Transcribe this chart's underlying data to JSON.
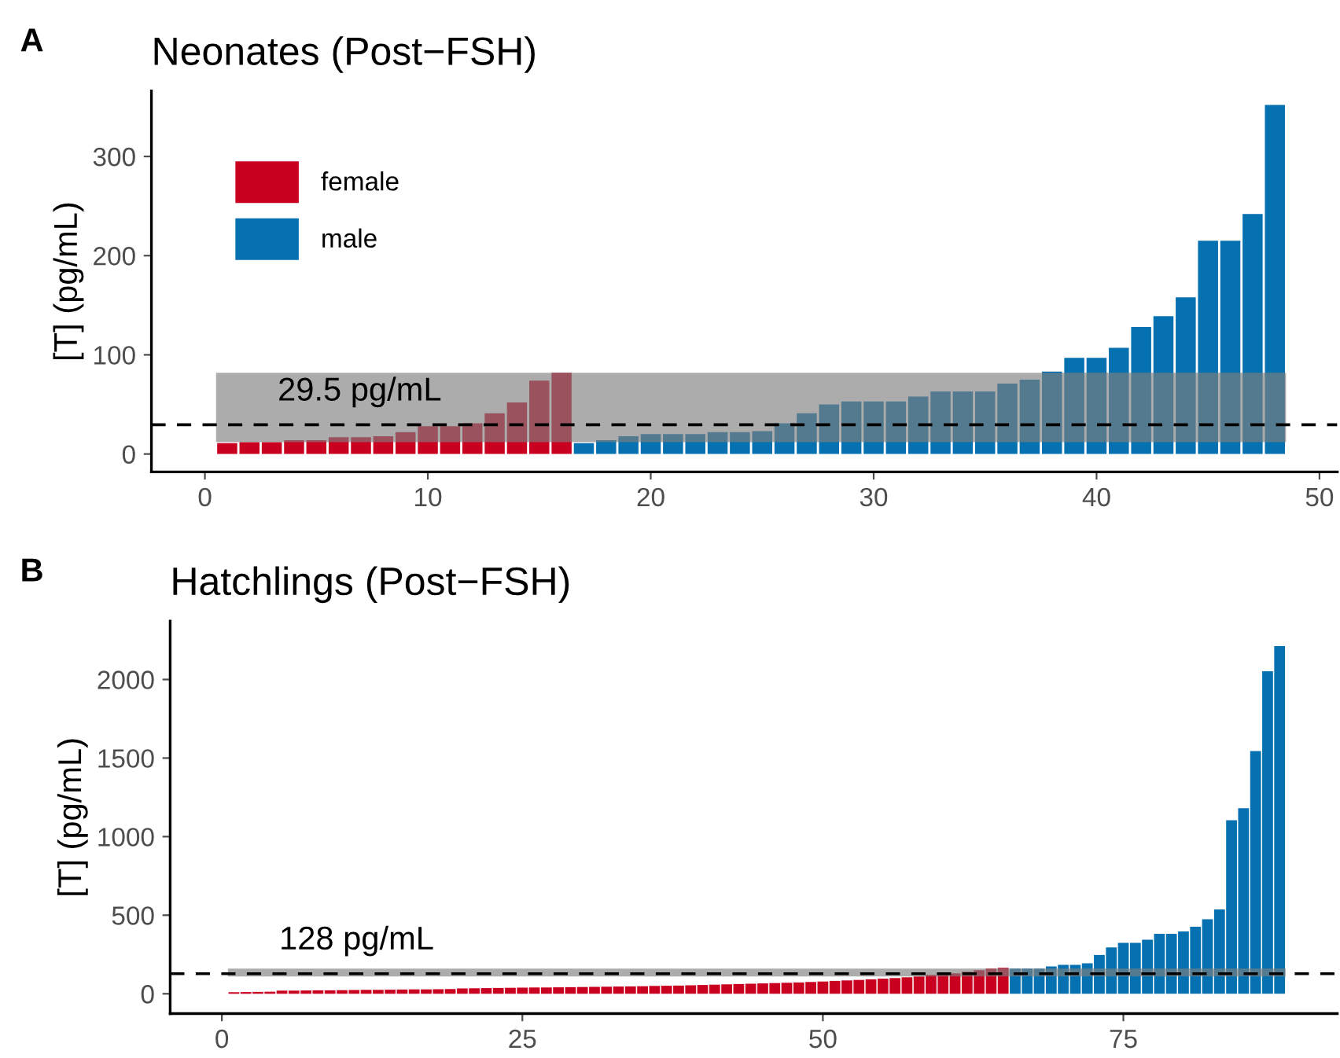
{
  "chart_data": [
    {
      "type": "bar",
      "title": "Neonates (Post−FSH)",
      "ylabel": "[T] (pg/mL)",
      "annotations": [
        "A"
      ],
      "series": [
        {
          "name": "female",
          "color": "#ca0020",
          "x": [
            1,
            2,
            3,
            4,
            5,
            6,
            7,
            8,
            9,
            10,
            11,
            12,
            13,
            14,
            15,
            16
          ],
          "values": [
            11,
            12,
            12,
            14,
            14,
            17,
            17,
            18,
            22,
            28,
            28,
            31,
            41,
            52,
            74,
            82
          ]
        },
        {
          "name": "male",
          "color": "#0571b0",
          "x": [
            17,
            18,
            19,
            20,
            21,
            22,
            23,
            24,
            25,
            26,
            27,
            28,
            29,
            30,
            31,
            32,
            33,
            34,
            35,
            36,
            37,
            38,
            39,
            40,
            41,
            42,
            43,
            44,
            45,
            46,
            47,
            48
          ],
          "values": [
            11,
            14,
            18,
            20,
            20,
            20,
            22,
            22,
            23,
            31,
            41,
            50,
            53,
            53,
            53,
            58,
            63,
            63,
            63,
            71,
            75,
            83,
            97,
            97,
            107,
            128,
            139,
            158,
            215,
            215,
            242,
            352
          ]
        }
      ],
      "xlim": [
        -2.4,
        50.8
      ],
      "xticks": [
        0,
        10,
        20,
        30,
        40,
        50
      ],
      "ylim": [
        -18,
        366
      ],
      "yticks": [
        0,
        100,
        200,
        300
      ],
      "ref_lines": [
        {
          "axis": "y",
          "value": 29.5,
          "label": "29.5 pg/mL",
          "line_style": "dashed",
          "color": "#000000"
        }
      ],
      "bands": [
        {
          "axis": "y",
          "from": 12,
          "to": 82,
          "color": "#808080"
        }
      ],
      "legend": "top left",
      "grid": false
    },
    {
      "type": "bar",
      "title": "Hatchlings (Post−FSH)",
      "ylabel": "[T] (pg/mL)",
      "annotations": [
        "B"
      ],
      "series": [
        {
          "color": "#ca0020",
          "x": [
            1,
            2,
            3,
            4,
            5,
            6,
            7,
            8,
            9,
            10,
            11,
            12,
            13,
            14,
            15,
            16,
            17,
            18,
            19,
            20,
            21,
            22,
            23,
            24,
            25,
            26,
            27,
            28,
            29,
            30,
            31,
            32,
            33,
            34,
            35,
            36,
            37,
            38,
            39,
            40,
            41,
            42,
            43,
            44,
            45,
            46,
            47,
            48,
            49,
            50,
            51,
            52,
            53,
            54,
            55,
            56,
            57,
            58,
            59,
            60,
            61,
            62,
            63,
            64,
            65
          ],
          "values": [
            10,
            11,
            12,
            13,
            20,
            20,
            21,
            22,
            22,
            23,
            24,
            25,
            25,
            26,
            27,
            28,
            28,
            29,
            30,
            34,
            35,
            36,
            37,
            38,
            39,
            40,
            40,
            41,
            42,
            43,
            44,
            45,
            46,
            47,
            48,
            50,
            51,
            52,
            54,
            56,
            58,
            60,
            62,
            64,
            66,
            68,
            70,
            72,
            75,
            78,
            82,
            85,
            88,
            92,
            96,
            100,
            105,
            110,
            120,
            125,
            130,
            140,
            150,
            160,
            165
          ]
        },
        {
          "color": "#0571b0",
          "x": [
            66,
            67,
            68,
            69,
            70,
            71,
            72,
            73,
            74,
            75,
            76,
            77,
            78,
            79,
            80,
            81,
            82,
            83,
            84,
            85,
            86,
            87,
            88
          ],
          "values": [
            160,
            160,
            160,
            174,
            184,
            184,
            194,
            247,
            295,
            324,
            324,
            344,
            382,
            382,
            397,
            426,
            474,
            537,
            1104,
            1181,
            1544,
            2052,
            2212
          ]
        }
      ],
      "xlim": [
        -4.3,
        92.8
      ],
      "xticks": [
        0,
        25,
        50,
        75
      ],
      "ylim": [
        -126,
        2372
      ],
      "yticks": [
        0,
        500,
        1000,
        1500,
        2000
      ],
      "ref_lines": [
        {
          "axis": "y",
          "value": 128,
          "label": "128 pg/mL",
          "line_style": "dashed",
          "color": "#000000"
        }
      ],
      "bands": [
        {
          "axis": "y",
          "from": 110,
          "to": 160,
          "color": "#808080"
        }
      ],
      "grid": false
    }
  ]
}
